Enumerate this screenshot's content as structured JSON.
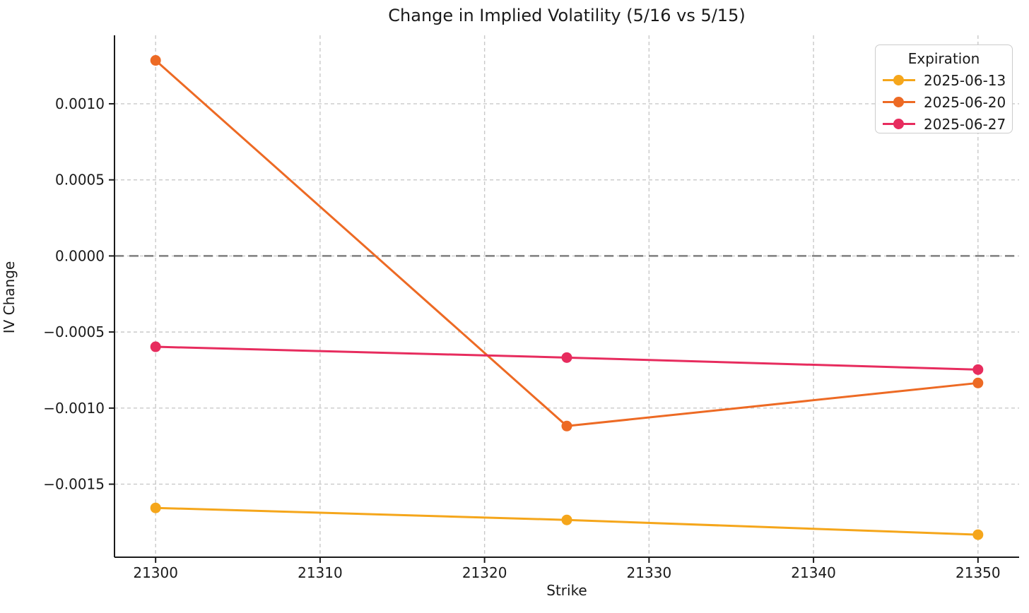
{
  "figure": {
    "title": "Change in Implied Volatility (5/16 vs 5/15)",
    "xlabel": "Strike",
    "ylabel": "IV Change"
  },
  "legend": {
    "title": "Expiration",
    "position": "upper right"
  },
  "colors": {
    "background": "#ffffff",
    "text": "#1a1a1a",
    "spine": "#1a1a1a",
    "grid": "#c9c9c9",
    "zero_line": "#7f7f7f",
    "series_2025_06_13": "#F5A61B",
    "series_2025_06_20": "#ED6A24",
    "series_2025_06_27": "#E72C5E"
  },
  "chart_data": {
    "type": "line",
    "title": "Change in Implied Volatility (5/16 vs 5/15)",
    "xlabel": "Strike",
    "ylabel": "IV Change",
    "x": [
      21300,
      21325,
      21350
    ],
    "series": [
      {
        "name": "2025-06-13",
        "color": "#F5A61B",
        "values": [
          -0.001656,
          -0.001735,
          -0.001832
        ]
      },
      {
        "name": "2025-06-20",
        "color": "#ED6A24",
        "values": [
          0.001285,
          -0.001118,
          -0.000835
        ]
      },
      {
        "name": "2025-06-27",
        "color": "#E72C5E",
        "values": [
          -0.000597,
          -0.000668,
          -0.000747
        ]
      }
    ],
    "xticks": [
      21300,
      21310,
      21320,
      21330,
      21340,
      21350
    ],
    "xtick_labels": [
      "21300",
      "21310",
      "21320",
      "21330",
      "21340",
      "21350"
    ],
    "yticks": [
      0.001,
      0.0005,
      0.0,
      -0.0005,
      -0.001,
      -0.0015
    ],
    "ytick_labels": [
      "0.0010",
      "0.0005",
      "0.0000",
      "−0.0005",
      "−0.0010",
      "−0.0015"
    ],
    "xlim": [
      21297.5,
      21352.5
    ],
    "ylim": [
      -0.00198,
      0.00145
    ],
    "zero_line_y": 0.0,
    "grid": true,
    "grid_style": "dashed",
    "legend_title": "Expiration",
    "legend_position": "upper right"
  }
}
